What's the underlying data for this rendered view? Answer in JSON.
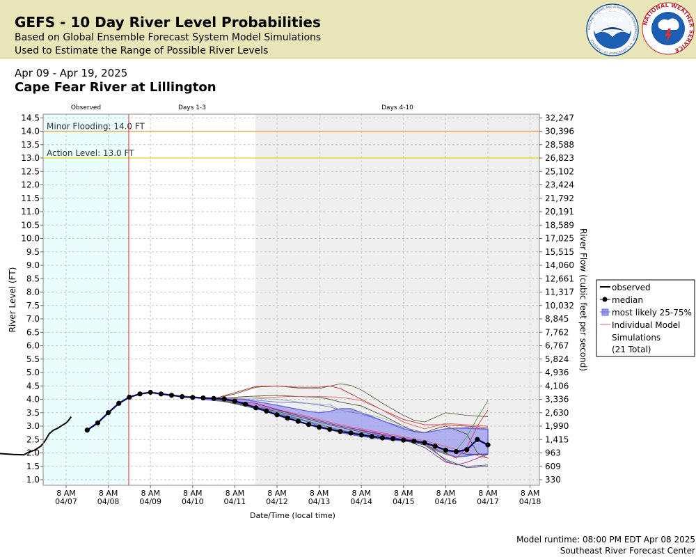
{
  "header": {
    "title": "GEFS - 10 Day River Level Probabilities",
    "subtitle1": "Based on Global Ensemble Forecast System Model Simulations",
    "subtitle2": "Used to Estimate the Range of Possible River Levels",
    "noaa_logo_text": "NOAA",
    "nws_logo_text": "NATIONAL WEATHER SERVICE",
    "noaa_ring_text": "NATIONAL OCEANIC AND ATMOSPHERIC ADMINISTRATION · U.S. DEPARTMENT OF COMMERCE"
  },
  "date_range": "Apr 09 - Apr 19, 2025",
  "location": "Cape Fear River at Lillington",
  "footer": {
    "runtime": "Model runtime: 08:00 PM EDT Apr 08 2025",
    "center": "Southeast River Forecast Center"
  },
  "colors": {
    "header_bg": "#e8e6b8",
    "observed_bg": "#eafdfd",
    "days410_bg": "#efefef",
    "minor_flood": "#f0a040",
    "action": "#e8d800",
    "band": "#9b9bf0",
    "median_line": "#2020c0",
    "forecast_start": "#d03030"
  },
  "chart_data": {
    "type": "line",
    "xlabel": "Date/Time (local time)",
    "ylabel": "River Level (FT)",
    "y2label": "River Flow (cubic feet per second)",
    "ylim": [
      0.8,
      14.6
    ],
    "grid": true,
    "legend_position": "right",
    "section_labels": [
      "Observed",
      "Days 1-3",
      "Days 4-10"
    ],
    "x_ticks": [
      {
        "time": "8 AM",
        "date": "04/07"
      },
      {
        "time": "8 AM",
        "date": "04/08"
      },
      {
        "time": "8 AM",
        "date": "04/09"
      },
      {
        "time": "8 AM",
        "date": "04/10"
      },
      {
        "time": "8 AM",
        "date": "04/11"
      },
      {
        "time": "8 AM",
        "date": "04/12"
      },
      {
        "time": "8 AM",
        "date": "04/13"
      },
      {
        "time": "8 AM",
        "date": "04/14"
      },
      {
        "time": "8 AM",
        "date": "04/15"
      },
      {
        "time": "8 AM",
        "date": "04/16"
      },
      {
        "time": "8 AM",
        "date": "04/17"
      },
      {
        "time": "8 AM",
        "date": "04/18"
      }
    ],
    "y_ticks": [
      "1.0",
      "1.5",
      "2.0",
      "2.5",
      "3.0",
      "3.5",
      "4.0",
      "4.5",
      "5.0",
      "5.5",
      "6.0",
      "6.5",
      "7.0",
      "7.5",
      "8.0",
      "8.5",
      "9.0",
      "9.5",
      "10.0",
      "10.5",
      "11.0",
      "11.5",
      "12.0",
      "12.5",
      "13.0",
      "13.5",
      "14.0",
      "14.5"
    ],
    "y2_ticks": [
      "330",
      "609",
      "963",
      "1,415",
      "1,990",
      "2,630",
      "3,336",
      "4,106",
      "4,936",
      "5,824",
      "6,767",
      "7,762",
      "8,845",
      "10,032",
      "11,317",
      "12,661",
      "14,060",
      "15,515",
      "17,025",
      "18,589",
      "20,191",
      "21,792",
      "23,424",
      "25,102",
      "26,823",
      "28,588",
      "30,396",
      "32,247"
    ],
    "thresholds": [
      {
        "label": "Minor Flooding: 14.0 FT",
        "value": 14.0
      },
      {
        "label": "Action Level: 13.0 FT",
        "value": 13.0
      }
    ],
    "legend": {
      "observed": "observed",
      "median": "median",
      "band": "most likely 25-75%",
      "members_line1": "Individual Model",
      "members_line2": "Simulations",
      "members_line3": "(21 Total)"
    },
    "observed": {
      "x": [
        -2.25,
        -2.0,
        -1.75,
        -1.5,
        -1.25,
        -1.0,
        -0.9,
        -0.75,
        -0.6,
        -0.5,
        -0.4,
        -0.3,
        -0.2,
        -0.1,
        0.0,
        0.05,
        0.12
      ],
      "y": [
        2.07,
        2.02,
        2.0,
        1.97,
        1.94,
        1.93,
        2.02,
        2.1,
        2.25,
        2.45,
        2.72,
        2.85,
        2.92,
        3.02,
        3.12,
        3.2,
        3.35
      ]
    },
    "median": {
      "x": [
        0.5,
        0.75,
        1.0,
        1.25,
        1.5,
        1.75,
        2.0,
        2.25,
        2.5,
        2.75,
        3.0,
        3.25,
        3.5,
        3.75,
        4.0,
        4.25,
        4.5,
        4.75,
        5.0,
        5.25,
        5.5,
        5.75,
        6.0,
        6.25,
        6.5,
        6.75,
        7.0,
        7.25,
        7.5,
        7.75,
        8.0,
        8.25,
        8.5,
        8.75,
        9.0,
        9.25,
        9.5,
        9.75
      ],
      "y": [
        2.85,
        3.12,
        3.5,
        3.85,
        4.08,
        4.2,
        4.26,
        4.2,
        4.15,
        4.1,
        4.07,
        4.05,
        4.03,
        4.01,
        3.93,
        3.82,
        3.68,
        3.56,
        3.42,
        3.3,
        3.18,
        3.06,
        2.96,
        2.88,
        2.8,
        2.74,
        2.67,
        2.61,
        2.56,
        2.53,
        2.48,
        2.44,
        2.38,
        2.25,
        2.1,
        2.05,
        2.12,
        2.5
      ]
    },
    "median_end": {
      "x": 10.0,
      "y": 2.3
    },
    "band": {
      "x": [
        3.25,
        3.75,
        4.25,
        4.75,
        5.25,
        5.75,
        6.0,
        6.25,
        6.5,
        6.75,
        7.0,
        7.25,
        7.5,
        7.75,
        8.0,
        8.25,
        8.5,
        8.75,
        9.0,
        9.25,
        9.5,
        9.75,
        10.0
      ],
      "upper": [
        4.05,
        4.02,
        3.98,
        3.85,
        3.7,
        3.55,
        3.5,
        3.55,
        3.65,
        3.65,
        3.5,
        3.35,
        3.2,
        3.05,
        2.9,
        2.8,
        2.75,
        2.82,
        2.9,
        2.93,
        2.92,
        2.9,
        2.88
      ],
      "lower": [
        4.0,
        3.92,
        3.75,
        3.55,
        3.35,
        3.15,
        3.0,
        2.88,
        2.76,
        2.68,
        2.62,
        2.57,
        2.52,
        2.48,
        2.45,
        2.4,
        2.3,
        2.1,
        1.95,
        1.85,
        1.88,
        1.95,
        1.97
      ]
    },
    "members": [
      {
        "color": "#505030",
        "x": [
          3.5,
          4.25,
          5.0,
          5.5,
          6.0,
          6.25,
          6.5,
          7.0,
          7.5,
          8.0,
          8.25,
          8.5,
          8.75,
          9.0,
          9.5,
          9.75,
          10.0
        ],
        "y": [
          4.02,
          4.1,
          4.15,
          4.1,
          4.08,
          4.0,
          3.9,
          3.75,
          3.4,
          3.0,
          2.8,
          2.75,
          2.9,
          3.0,
          2.7,
          2.0,
          1.8
        ]
      },
      {
        "color": "#606040",
        "x": [
          3.5,
          4.0,
          4.5,
          5.0,
          5.5,
          6.0,
          6.5,
          6.75,
          7.0,
          7.5,
          8.0,
          8.25,
          8.5,
          9.0,
          9.5,
          10.0
        ],
        "y": [
          4.02,
          4.2,
          4.45,
          4.5,
          4.42,
          4.4,
          4.58,
          4.52,
          4.35,
          3.85,
          3.4,
          3.22,
          3.15,
          3.5,
          3.4,
          3.35
        ]
      },
      {
        "color": "#c03030",
        "x": [
          3.5,
          4.0,
          4.5,
          5.0,
          5.5,
          6.0,
          6.25,
          6.5,
          7.0,
          7.5,
          8.0,
          8.5,
          9.0,
          9.5,
          10.0
        ],
        "y": [
          4.02,
          4.25,
          4.48,
          4.5,
          4.45,
          4.45,
          4.5,
          4.4,
          4.0,
          3.6,
          3.25,
          3.05,
          3.05,
          3.0,
          2.95
        ]
      },
      {
        "color": "#e06060",
        "x": [
          3.5,
          4.5,
          5.25,
          6.0,
          6.5,
          7.0,
          7.5,
          8.0,
          8.5,
          9.0,
          9.5,
          10.0
        ],
        "y": [
          4.0,
          4.05,
          4.1,
          4.1,
          4.08,
          3.95,
          3.6,
          3.15,
          2.9,
          3.1,
          3.05,
          3.0
        ]
      },
      {
        "color": "#7070d0",
        "x": [
          3.5,
          4.25,
          5.0,
          5.75,
          6.25,
          6.5,
          7.0,
          7.5,
          8.0,
          8.5,
          9.0,
          9.5,
          10.0
        ],
        "y": [
          4.0,
          4.0,
          3.9,
          3.85,
          3.72,
          3.6,
          3.45,
          3.2,
          2.95,
          2.75,
          2.9,
          2.95,
          2.9
        ]
      },
      {
        "color": "#90b0b0",
        "x": [
          3.5,
          4.25,
          5.0,
          5.75,
          6.25,
          6.5,
          7.0,
          7.5,
          8.0
        ],
        "y": [
          4.02,
          4.05,
          4.0,
          3.85,
          3.8,
          3.6,
          3.5,
          3.3,
          3.0
        ]
      },
      {
        "color": "#e06060",
        "x": [
          3.5,
          4.5,
          5.5,
          6.5,
          7.5,
          8.5,
          9.0,
          9.5,
          10.0
        ],
        "y": [
          4.0,
          3.8,
          3.45,
          3.05,
          2.75,
          2.45,
          2.25,
          2.0,
          1.8
        ]
      },
      {
        "color": "#a020a0",
        "x": [
          3.5,
          4.5,
          5.5,
          6.5,
          7.5,
          8.0,
          8.5,
          9.0,
          9.25,
          9.5,
          9.75,
          10.0
        ],
        "y": [
          4.0,
          3.85,
          3.4,
          3.0,
          2.7,
          2.55,
          2.4,
          1.7,
          1.55,
          1.65,
          1.8,
          1.95
        ]
      },
      {
        "color": "#8040a0",
        "x": [
          3.5,
          5.0,
          6.5,
          8.0,
          8.5,
          9.0,
          9.5,
          10.0
        ],
        "y": [
          4.0,
          3.6,
          3.0,
          2.5,
          2.2,
          1.65,
          1.5,
          1.55
        ]
      },
      {
        "color": "#306060",
        "x": [
          3.5,
          5.0,
          6.5,
          8.0,
          8.5,
          9.0,
          9.5,
          10.0
        ],
        "y": [
          4.0,
          3.55,
          2.95,
          2.45,
          2.3,
          1.75,
          1.45,
          1.5
        ]
      },
      {
        "color": "#3030a0",
        "x": [
          3.5,
          5.0,
          6.5,
          8.0,
          8.5,
          9.0,
          9.5,
          10.0
        ],
        "y": [
          4.0,
          3.5,
          2.85,
          2.45,
          2.35,
          2.1,
          1.95,
          1.95
        ]
      },
      {
        "color": "#d04040",
        "x": [
          3.5,
          5.0,
          6.5,
          8.0,
          8.5,
          9.0,
          9.25,
          9.5,
          9.75,
          10.0
        ],
        "y": [
          4.0,
          3.5,
          2.85,
          2.45,
          2.3,
          2.0,
          1.8,
          2.2,
          3.0,
          3.6
        ]
      },
      {
        "color": "#50a050",
        "x": [
          3.5,
          5.0,
          6.5,
          8.0,
          8.5,
          9.0,
          9.25,
          9.5,
          9.75,
          10.0
        ],
        "y": [
          4.0,
          3.5,
          2.85,
          2.45,
          2.3,
          1.95,
          2.1,
          2.6,
          3.3,
          3.95
        ]
      }
    ]
  }
}
